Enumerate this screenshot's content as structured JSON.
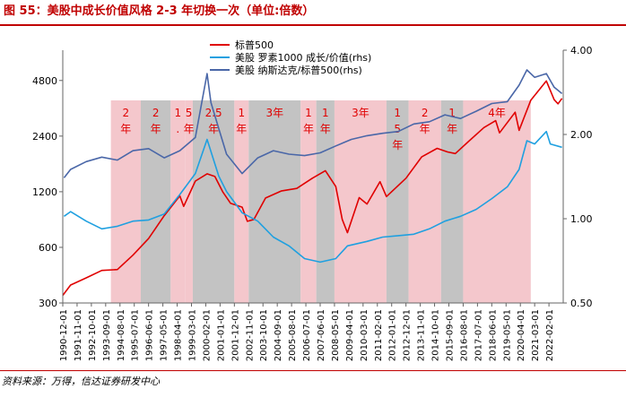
{
  "figure": {
    "title": "图 55：美股中成长价值风格 2-3 年切换一次（单位:倍数）",
    "source": "资料来源：万得，信达证券研发中心"
  },
  "colors": {
    "title_red": "#c00000",
    "sp500": "#e00000",
    "russell": "#1fa0e0",
    "nasdaq_ratio": "#4a67a8",
    "band_pink": "#f4c7cc",
    "band_gray": "#c3c3c3",
    "annotation": "#e00000"
  },
  "chart_data": {
    "type": "line",
    "legend": {
      "position": "top-left-inside",
      "entries": [
        "标普500",
        "美股  罗素1000 成长/价值(rhs)",
        "美股  纳斯达克/标普500(rhs)"
      ]
    },
    "axes": {
      "y_left": {
        "scale": "log",
        "ticks": [
          300,
          600,
          1200,
          2400,
          4800
        ],
        "range": [
          300,
          7000
        ]
      },
      "y_right": {
        "scale": "log",
        "ticks": [
          "0.50",
          "1.00",
          "2.00",
          "4.00"
        ],
        "range": [
          0.5,
          4.0
        ]
      },
      "x": {
        "type": "date",
        "range": [
          "1990-12-01",
          "2022-12-31"
        ],
        "ticks": [
          "1990-12-01",
          "1991-11-01",
          "1992-10-01",
          "1993-09-01",
          "1994-08-01",
          "1995-07-01",
          "1996-06-01",
          "1997-05-01",
          "1998-04-01",
          "1999-03-01",
          "2000-02-01",
          "2001-01-01",
          "2001-12-01",
          "2002-11-01",
          "2003-10-01",
          "2004-09-01",
          "2005-08-01",
          "2006-07-01",
          "2007-06-01",
          "2008-05-01",
          "2009-04-01",
          "2010-03-01",
          "2011-02-01",
          "2012-01-01",
          "2012-12-01",
          "2013-11-01",
          "2014-10-01",
          "2015-09-01",
          "2016-08-01",
          "2017-07-01",
          "2018-06-01",
          "2019-05-01",
          "2020-04-01",
          "2021-03-01",
          "2022-02-01"
        ]
      },
      "grid": false
    },
    "bands": [
      {
        "start": "1994-01-01",
        "end": "1995-12-01",
        "style": "pink",
        "labels": [
          "2",
          "年"
        ]
      },
      {
        "start": "1995-12-01",
        "end": "1997-11-01",
        "style": "gray",
        "labels": [
          "2",
          "年"
        ]
      },
      {
        "start": "1997-11-01",
        "end": "1998-10-01",
        "style": "pink",
        "labels": [
          "1",
          "."
        ]
      },
      {
        "start": "1998-10-01",
        "end": "1999-04-01",
        "style": "pink",
        "labels": [
          "5",
          "年"
        ]
      },
      {
        "start": "1999-04-01",
        "end": "2001-12-01",
        "style": "gray",
        "labels": [
          "2.5",
          "年"
        ]
      },
      {
        "start": "2001-12-01",
        "end": "2002-11-01",
        "style": "pink",
        "labels": [
          "1",
          "年"
        ]
      },
      {
        "start": "2002-11-01",
        "end": "2006-03-01",
        "style": "gray",
        "labels": [
          "3年"
        ]
      },
      {
        "start": "2006-03-01",
        "end": "2007-03-01",
        "style": "pink",
        "labels": [
          "1",
          "年"
        ]
      },
      {
        "start": "2007-03-01",
        "end": "2008-05-01",
        "style": "gray",
        "labels": [
          "1",
          "年"
        ]
      },
      {
        "start": "2008-05-01",
        "end": "2011-09-01",
        "style": "pink",
        "labels": [
          "3年"
        ]
      },
      {
        "start": "2011-09-01",
        "end": "2013-02-01",
        "style": "gray",
        "labels": [
          "1",
          "5",
          "年"
        ]
      },
      {
        "start": "2013-02-01",
        "end": "2015-03-01",
        "style": "pink",
        "labels": [
          "2",
          "年"
        ]
      },
      {
        "start": "2015-03-01",
        "end": "2016-08-01",
        "style": "gray",
        "labels": [
          "1",
          "年"
        ]
      },
      {
        "start": "2016-08-01",
        "end": "2020-12-01",
        "style": "pink",
        "labels": [
          "4年"
        ]
      }
    ],
    "series": [
      {
        "name": "标普500",
        "axis": "left",
        "color": "#e00000",
        "points": [
          [
            "1990-12-01",
            330
          ],
          [
            "1991-06-01",
            375
          ],
          [
            "1992-06-01",
            410
          ],
          [
            "1993-06-01",
            450
          ],
          [
            "1994-06-01",
            455
          ],
          [
            "1995-06-01",
            545
          ],
          [
            "1996-06-01",
            670
          ],
          [
            "1997-06-01",
            890
          ],
          [
            "1998-06-01",
            1140
          ],
          [
            "1998-09-01",
            1000
          ],
          [
            "1999-06-01",
            1370
          ],
          [
            "2000-03-01",
            1500
          ],
          [
            "2000-09-01",
            1450
          ],
          [
            "2001-03-01",
            1200
          ],
          [
            "2001-09-01",
            1040
          ],
          [
            "2002-06-01",
            990
          ],
          [
            "2002-10-01",
            830
          ],
          [
            "2003-03-01",
            850
          ],
          [
            "2003-12-01",
            1110
          ],
          [
            "2004-12-01",
            1210
          ],
          [
            "2005-12-01",
            1250
          ],
          [
            "2006-12-01",
            1420
          ],
          [
            "2007-10-01",
            1560
          ],
          [
            "2008-06-01",
            1280
          ],
          [
            "2008-11-01",
            850
          ],
          [
            "2009-03-01",
            720
          ],
          [
            "2009-12-01",
            1115
          ],
          [
            "2010-06-01",
            1030
          ],
          [
            "2011-04-01",
            1360
          ],
          [
            "2011-09-01",
            1130
          ],
          [
            "2012-12-01",
            1420
          ],
          [
            "2013-12-01",
            1850
          ],
          [
            "2014-12-01",
            2060
          ],
          [
            "2015-08-01",
            1970
          ],
          [
            "2016-02-01",
            1930
          ],
          [
            "2016-12-01",
            2240
          ],
          [
            "2017-12-01",
            2670
          ],
          [
            "2018-09-01",
            2910
          ],
          [
            "2018-12-01",
            2500
          ],
          [
            "2019-12-01",
            3230
          ],
          [
            "2020-03-01",
            2580
          ],
          [
            "2020-12-01",
            3750
          ],
          [
            "2021-12-01",
            4770
          ],
          [
            "2022-06-01",
            3780
          ],
          [
            "2022-09-01",
            3590
          ],
          [
            "2022-12-01",
            3840
          ]
        ]
      },
      {
        "name": "美股  罗素1000 成长/价值(rhs)",
        "axis": "right",
        "color": "#1fa0e0",
        "points": [
          [
            "1991-01-01",
            1.02
          ],
          [
            "1991-06-01",
            1.06
          ],
          [
            "1992-06-01",
            0.98
          ],
          [
            "1993-06-01",
            0.92
          ],
          [
            "1994-06-01",
            0.94
          ],
          [
            "1995-06-01",
            0.98
          ],
          [
            "1996-06-01",
            0.99
          ],
          [
            "1997-06-01",
            1.04
          ],
          [
            "1998-06-01",
            1.22
          ],
          [
            "1999-06-01",
            1.45
          ],
          [
            "2000-03-01",
            1.92
          ],
          [
            "2000-12-01",
            1.42
          ],
          [
            "2001-06-01",
            1.25
          ],
          [
            "2002-06-01",
            1.05
          ],
          [
            "2003-06-01",
            0.98
          ],
          [
            "2004-06-01",
            0.86
          ],
          [
            "2005-06-01",
            0.8
          ],
          [
            "2006-06-01",
            0.72
          ],
          [
            "2007-06-01",
            0.7
          ],
          [
            "2008-06-01",
            0.72
          ],
          [
            "2009-03-01",
            0.8
          ],
          [
            "2010-06-01",
            0.83
          ],
          [
            "2011-06-01",
            0.86
          ],
          [
            "2012-06-01",
            0.87
          ],
          [
            "2013-06-01",
            0.88
          ],
          [
            "2014-06-01",
            0.92
          ],
          [
            "2015-06-01",
            0.98
          ],
          [
            "2016-06-01",
            1.02
          ],
          [
            "2017-06-01",
            1.08
          ],
          [
            "2018-06-01",
            1.18
          ],
          [
            "2019-06-01",
            1.3
          ],
          [
            "2020-03-01",
            1.5
          ],
          [
            "2020-09-01",
            1.9
          ],
          [
            "2021-03-01",
            1.85
          ],
          [
            "2021-12-01",
            2.05
          ],
          [
            "2022-03-01",
            1.85
          ],
          [
            "2022-12-01",
            1.8
          ]
        ]
      },
      {
        "name": "美股  纳斯达克/标普500(rhs)",
        "axis": "right",
        "color": "#4a67a8",
        "points": [
          [
            "1991-01-01",
            1.4
          ],
          [
            "1991-06-01",
            1.5
          ],
          [
            "1992-06-01",
            1.6
          ],
          [
            "1993-06-01",
            1.66
          ],
          [
            "1994-06-01",
            1.62
          ],
          [
            "1995-06-01",
            1.75
          ],
          [
            "1996-06-01",
            1.78
          ],
          [
            "1997-06-01",
            1.65
          ],
          [
            "1998-06-01",
            1.75
          ],
          [
            "1999-06-01",
            1.95
          ],
          [
            "2000-03-01",
            3.3
          ],
          [
            "2000-06-01",
            2.6
          ],
          [
            "2000-12-01",
            2.1
          ],
          [
            "2001-06-01",
            1.7
          ],
          [
            "2002-06-01",
            1.45
          ],
          [
            "2003-06-01",
            1.65
          ],
          [
            "2004-06-01",
            1.75
          ],
          [
            "2005-06-01",
            1.7
          ],
          [
            "2006-06-01",
            1.68
          ],
          [
            "2007-06-01",
            1.72
          ],
          [
            "2008-06-01",
            1.82
          ],
          [
            "2009-06-01",
            1.92
          ],
          [
            "2010-06-01",
            1.98
          ],
          [
            "2011-06-01",
            2.02
          ],
          [
            "2012-06-01",
            2.05
          ],
          [
            "2013-06-01",
            2.18
          ],
          [
            "2014-06-01",
            2.22
          ],
          [
            "2015-06-01",
            2.35
          ],
          [
            "2016-06-01",
            2.28
          ],
          [
            "2017-06-01",
            2.42
          ],
          [
            "2018-06-01",
            2.58
          ],
          [
            "2019-06-01",
            2.62
          ],
          [
            "2020-03-01",
            3.0
          ],
          [
            "2020-09-01",
            3.4
          ],
          [
            "2021-03-01",
            3.2
          ],
          [
            "2021-12-01",
            3.3
          ],
          [
            "2022-06-01",
            2.95
          ],
          [
            "2022-12-01",
            2.8
          ]
        ]
      }
    ]
  }
}
